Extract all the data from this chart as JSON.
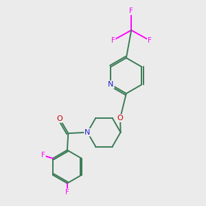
{
  "bg_color": "#EBEBEB",
  "bond_color": "#3A7A55",
  "atom_colors": {
    "F": "#FF00FF",
    "N": "#2020CC",
    "O": "#CC0000",
    "C": "#3A7A55"
  }
}
